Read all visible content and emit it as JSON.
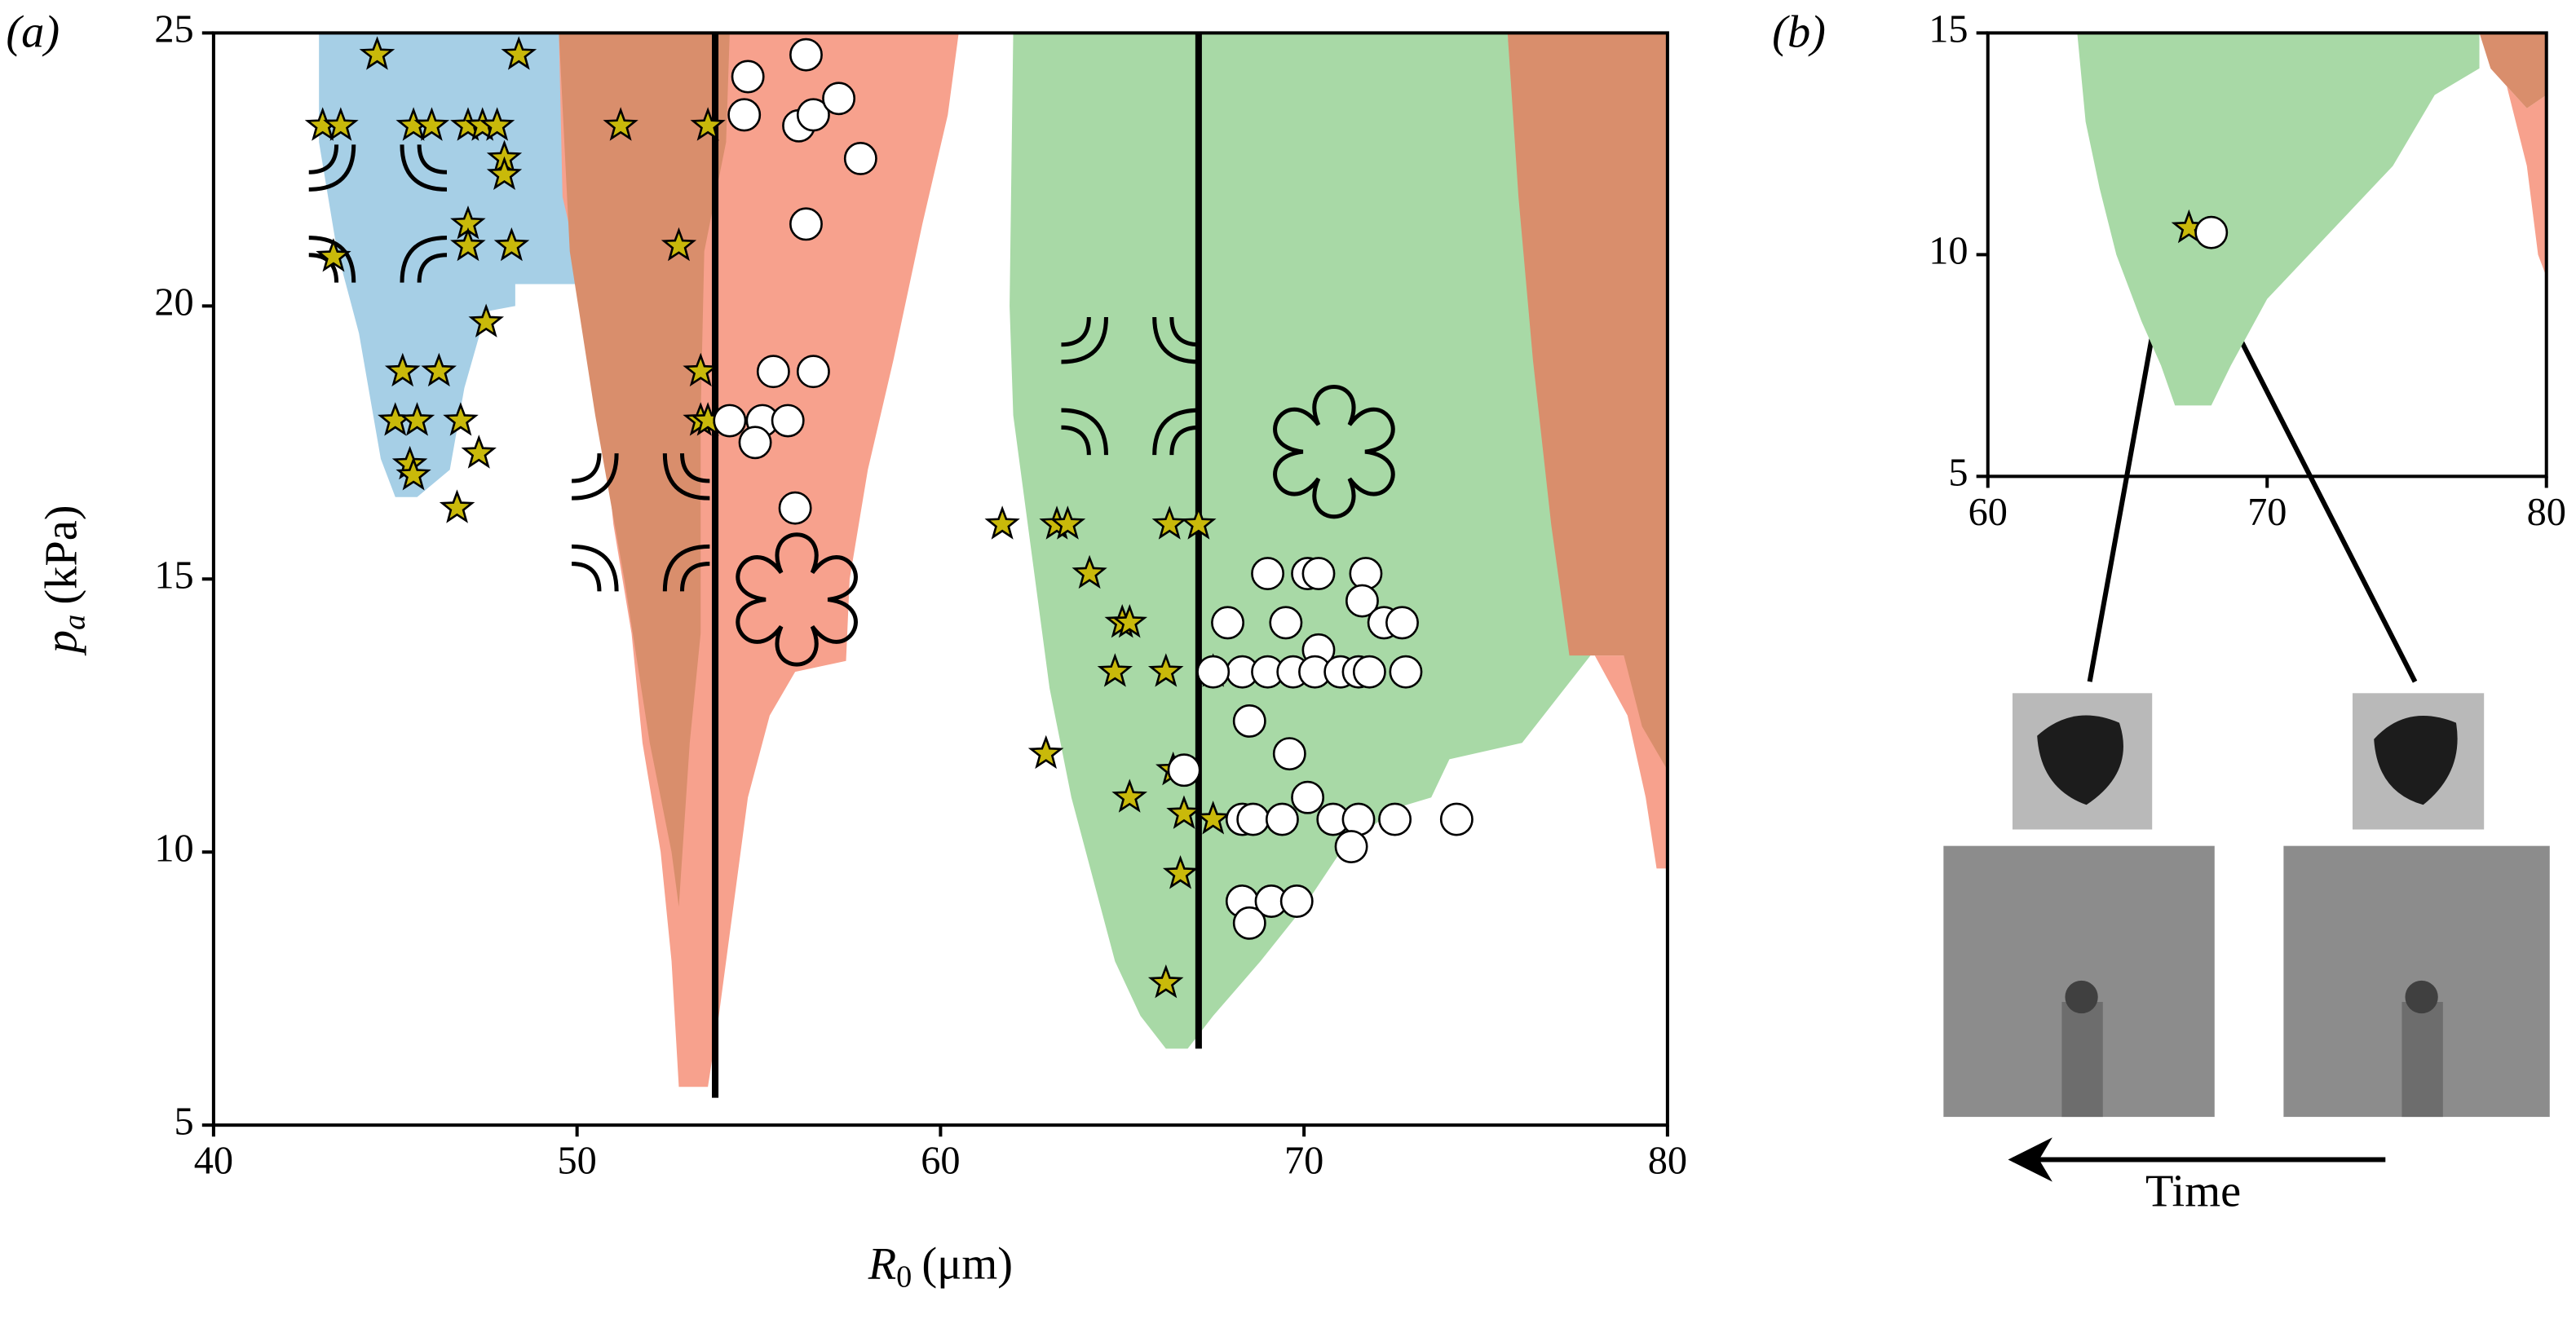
{
  "chart_data": [
    {
      "type": "scatter",
      "panel": "(a)",
      "xlabel": {
        "var": "R",
        "sub": "0",
        "unit": "(μm)"
      },
      "ylabel": {
        "var": "p",
        "sub": "a",
        "unit": "(kPa)"
      },
      "xlim": [
        40,
        80
      ],
      "xticks": [
        40,
        50,
        60,
        70,
        80
      ],
      "ylim": [
        5,
        25
      ],
      "yticks": [
        5,
        10,
        15,
        20,
        25
      ],
      "regions": [
        {
          "color": "#a6cfe6",
          "x": [
            42.9,
            50,
            50,
            48.3,
            48.3,
            47.5,
            46.9,
            46.5,
            45.6,
            45,
            44.6,
            44,
            43.4,
            42.9
          ],
          "y": [
            25,
            25,
            20.4,
            20.4,
            20,
            19.9,
            18.5,
            17,
            16.5,
            16.5,
            17.2,
            19.5,
            21,
            23
          ]
        },
        {
          "color": "#f7a18d",
          "x": [
            49.5,
            49.6,
            50.3,
            50.7,
            51,
            51.5,
            51.8,
            52.3,
            52.6,
            52.8,
            53.6,
            53.9,
            54.3,
            54.7,
            55.3,
            56,
            57.4,
            57.5,
            58,
            58.7,
            59.5,
            60.2,
            60.5
          ],
          "y": [
            25,
            22,
            20,
            18,
            16,
            14,
            12,
            10,
            8,
            5.7,
            5.7,
            7,
            9,
            11,
            12.5,
            13.3,
            13.5,
            15,
            17,
            19,
            21.5,
            23.5,
            25
          ]
        },
        {
          "color": "#d98e6c",
          "x": [
            49.5,
            54.2,
            54.1,
            53.5,
            53.4,
            53.4,
            53.1,
            52.9,
            52.8,
            52.6,
            52,
            51.3,
            50.5,
            49.8
          ],
          "y": [
            25,
            25,
            23,
            21,
            18,
            14,
            12,
            10,
            9,
            10,
            12,
            15,
            18,
            21
          ]
        },
        {
          "color": "#a8d9a6",
          "x": [
            62,
            75.6,
            76,
            76.5,
            77.3,
            78,
            76,
            74,
            73.5,
            72.5,
            71,
            70,
            68.8,
            67.5,
            66.8,
            66.2,
            65.5,
            64.8,
            64.2,
            63.6,
            63,
            62.4,
            62,
            61.9
          ],
          "y": [
            25,
            25,
            22,
            19,
            16,
            13.7,
            12,
            11.7,
            11,
            10.8,
            10,
            9,
            8,
            7,
            6.4,
            6.4,
            7,
            8,
            9.5,
            11,
            13,
            16,
            18,
            20
          ]
        },
        {
          "color": "#f7a18d",
          "x": [
            78,
            80,
            80,
            79.7,
            79.4,
            78.9
          ],
          "y": [
            13.6,
            13.6,
            9.7,
            9.7,
            11,
            12.5
          ]
        },
        {
          "color": "#d98e6c",
          "x": [
            75.6,
            80,
            80,
            79.3,
            78.8,
            77.3,
            76.8,
            76.3,
            75.9
          ],
          "y": [
            25,
            25,
            11.5,
            12.3,
            13.6,
            13.6,
            16,
            19,
            22
          ]
        }
      ],
      "vlines": [
        {
          "x": 53.8,
          "ymin": 5.5,
          "ymax": 25
        },
        {
          "x": 67.1,
          "ymin": 6.4,
          "ymax": 25
        }
      ],
      "series": [
        {
          "marker": "star",
          "color": "#c9b90a",
          "x": [
            44.5,
            48.4,
            43,
            43.5,
            45.5,
            46,
            47,
            47.4,
            47.8,
            48,
            48,
            47,
            47,
            48.2,
            43.3,
            47.5,
            45.2,
            46.2,
            45,
            45.6,
            46.8,
            47.3,
            45.4,
            45.5,
            46.7,
            51.2,
            53.6,
            52.8,
            53.4,
            53.4,
            53.6,
            61.7,
            63.2,
            63.5,
            66.3,
            67.1,
            64.1,
            65,
            65.2,
            64.8,
            66.2,
            67.5,
            62.9,
            66.4,
            65.2,
            66.7,
            67.5,
            66.6,
            66.2
          ],
          "y": [
            24.6,
            24.6,
            23.3,
            23.3,
            23.3,
            23.3,
            23.3,
            23.3,
            23.3,
            22.7,
            22.4,
            21.5,
            21.1,
            21.1,
            20.9,
            19.7,
            18.8,
            18.8,
            17.9,
            17.9,
            17.9,
            17.3,
            17.1,
            16.9,
            16.3,
            23.3,
            23.3,
            21.1,
            18.8,
            17.9,
            17.9,
            16,
            16,
            16,
            16,
            16,
            15.1,
            14.2,
            14.2,
            13.3,
            13.3,
            13.3,
            11.8,
            11.5,
            11,
            10.7,
            10.6,
            9.6,
            7.6
          ]
        },
        {
          "marker": "circle",
          "color": "#ffffff",
          "x": [
            56.3,
            54.7,
            54.6,
            56.1,
            56.5,
            57.2,
            57.8,
            56.3,
            55.4,
            56.5,
            54.2,
            55.1,
            55.8,
            54.9,
            56,
            69,
            70.1,
            70.4,
            71.7,
            71.6,
            67.9,
            69.5,
            72.2,
            72.7,
            70.4,
            68.3,
            69,
            69.7,
            70.3,
            71,
            71.5,
            71.8,
            72.8,
            67.5,
            68.5,
            69.6,
            66.7,
            70.1,
            68.3,
            68.6,
            69.4,
            70.8,
            71.5,
            72.5,
            74.2,
            71.3,
            68.3,
            69.1,
            69.8,
            68.5
          ],
          "y": [
            24.6,
            24.2,
            23.5,
            23.3,
            23.5,
            23.8,
            22.7,
            21.5,
            18.8,
            18.8,
            17.9,
            17.9,
            17.9,
            17.5,
            16.3,
            15.1,
            15.1,
            15.1,
            15.1,
            14.6,
            14.2,
            14.2,
            14.2,
            14.2,
            13.7,
            13.3,
            13.3,
            13.3,
            13.3,
            13.3,
            13.3,
            13.3,
            13.3,
            13.3,
            12.4,
            11.8,
            11.5,
            11,
            10.6,
            10.6,
            10.6,
            10.6,
            10.6,
            10.6,
            10.6,
            10.1,
            9.1,
            9.1,
            9.1,
            8.7
          ]
        }
      ]
    },
    {
      "type": "scatter",
      "panel": "(b)",
      "annotation": "Time",
      "xlim": [
        60,
        80
      ],
      "xticks": [
        60,
        70,
        80
      ],
      "ylim": [
        5,
        15
      ],
      "yticks": [
        5,
        10,
        15
      ],
      "regions": [
        {
          "color": "#a8d9a6",
          "x": [
            63.2,
            77.6,
            77.6,
            76,
            74.5,
            73,
            71.5,
            70,
            68.7,
            68,
            66.7,
            66.2,
            65.5,
            64.6,
            64,
            63.5
          ],
          "y": [
            15,
            15,
            14.2,
            13.6,
            12,
            11,
            10,
            9,
            7.5,
            6.6,
            6.6,
            7.5,
            8.5,
            10,
            11.5,
            13
          ]
        },
        {
          "color": "#f7a18d",
          "x": [
            78,
            79.3,
            80,
            80,
            79.7,
            79.3,
            78.5
          ],
          "y": [
            14.2,
            13.3,
            13.6,
            9.5,
            10,
            12,
            14
          ]
        },
        {
          "color": "#d98e6c",
          "x": [
            77.6,
            80,
            80,
            79.3,
            78
          ],
          "y": [
            15,
            15,
            13.6,
            13.3,
            14.2
          ]
        }
      ],
      "series": [
        {
          "marker": "star",
          "color": "#c9b90a",
          "x": [
            67.2
          ],
          "y": [
            10.6
          ]
        },
        {
          "marker": "circle",
          "color": "#ffffff",
          "x": [
            68
          ],
          "y": [
            10.5
          ]
        }
      ]
    }
  ]
}
